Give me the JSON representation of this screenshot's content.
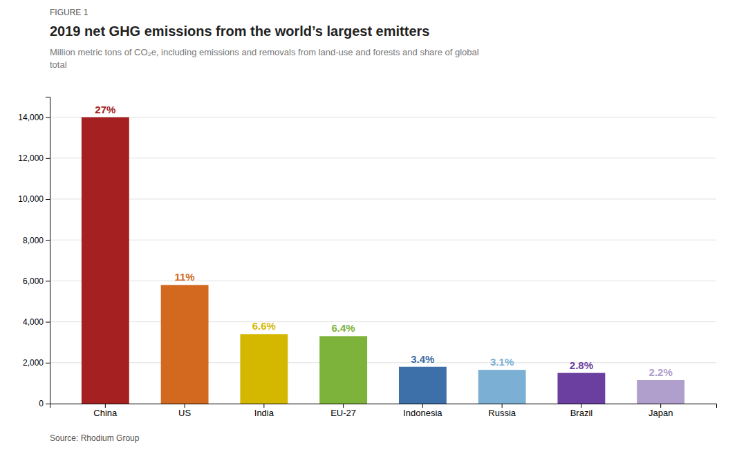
{
  "chart_data": {
    "type": "bar",
    "figure_label": "FIGURE 1",
    "title": "2019 net GHG emissions from the world’s largest emitters",
    "subtitle": "Million metric tons of CO₂e, including emissions and removals from land-use and forests and share of global\ntotal",
    "source": "Source: Rhodium Group",
    "categories": [
      "China",
      "US",
      "India",
      "EU-27",
      "Indonesia",
      "Russia",
      "Brazil",
      "Japan"
    ],
    "values": [
      14000,
      5800,
      3400,
      3300,
      1800,
      1650,
      1500,
      1150
    ],
    "colors": [
      "#a52020",
      "#d2691e",
      "#d4b800",
      "#7db33a",
      "#3d6fa8",
      "#7bafd4",
      "#6a3fa0",
      "#b09ecc"
    ],
    "shares": [
      27,
      11,
      6.6,
      6.4,
      3.4,
      3.1,
      2.8,
      2.2
    ],
    "share_labels": [
      "27%",
      "11%",
      "6.6%",
      "6.4%",
      "3.4%",
      "3.1%",
      "2.8%",
      "2.2%"
    ],
    "ylim": [
      0,
      15000
    ],
    "yticks": [
      0,
      {
        "value": 2000,
        "label": "2,000"
      },
      {
        "value": 4000,
        "label": "4,000"
      },
      {
        "value": 6000,
        "label": "6,000"
      },
      {
        "value": 8000,
        "label": "8,000"
      },
      {
        "value": 10000,
        "label": "10,000"
      },
      {
        "value": 12000,
        "label": "12,000"
      },
      {
        "value": 14000,
        "label": "14,000"
      }
    ],
    "grid": true
  }
}
